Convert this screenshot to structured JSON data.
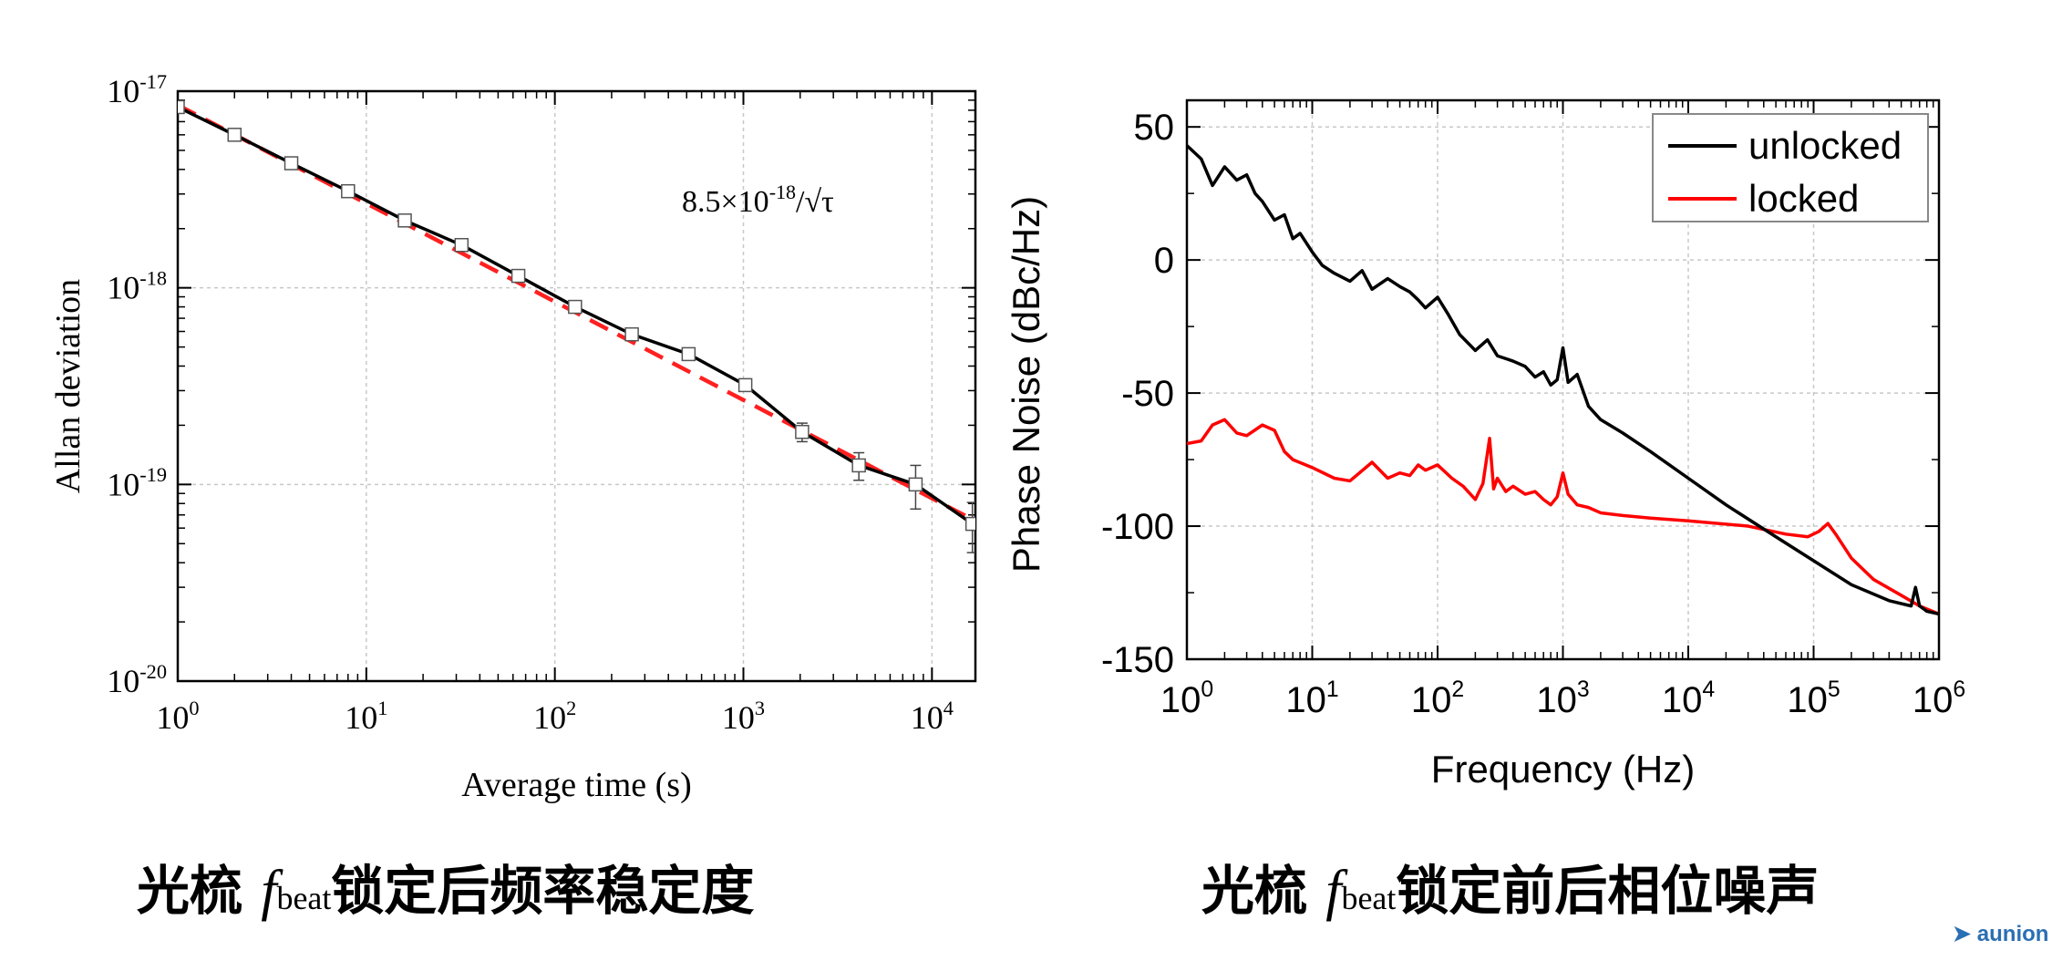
{
  "chart_data": [
    {
      "type": "line",
      "title": "",
      "xlabel": "Average time (s)",
      "ylabel": "Allan deviation",
      "xscale": "log",
      "yscale": "log",
      "xlim": [
        1,
        17000
      ],
      "ylim": [
        1e-20,
        1e-17
      ],
      "grid": true,
      "x_tick_labels": [
        {
          "base": "10",
          "exp": "0"
        },
        {
          "base": "10",
          "exp": "1"
        },
        {
          "base": "10",
          "exp": "2"
        },
        {
          "base": "10",
          "exp": "3"
        },
        {
          "base": "10",
          "exp": "4"
        }
      ],
      "y_tick_labels": [
        {
          "base": "10",
          "exp": "-17"
        },
        {
          "base": "10",
          "exp": "-18"
        },
        {
          "base": "10",
          "exp": "-19"
        },
        {
          "base": "10",
          "exp": "-20"
        }
      ],
      "annotation": {
        "prefix": "8.5×10",
        "exp": "-18",
        "suffix": "/√τ"
      },
      "series": [
        {
          "color": "#000000",
          "style": "solid-with-square-markers-and-error-bars",
          "x": [
            1,
            2,
            4,
            8,
            16,
            32,
            64,
            128,
            256,
            512,
            1024,
            2048,
            4096,
            8192,
            16384
          ],
          "y": [
            8.3e-18,
            6e-18,
            4.3e-18,
            3.1e-18,
            2.2e-18,
            1.65e-18,
            1.15e-18,
            8e-19,
            5.8e-19,
            4.6e-19,
            3.2e-19,
            1.85e-19,
            1.25e-19,
            1e-19,
            6.3e-20
          ],
          "err": [
            3e-19,
            2e-19,
            1.2e-19,
            1e-19,
            7e-20,
            6e-20,
            4e-20,
            3e-20,
            2e-20,
            2e-20,
            2e-20,
            2e-20,
            2e-20,
            2.5e-20,
            1.8e-20
          ]
        },
        {
          "color": "#ff2020",
          "style": "dashed",
          "x": [
            1,
            17000
          ],
          "y": [
            8.5e-18,
            6.52e-20
          ]
        }
      ]
    },
    {
      "type": "line",
      "title": "",
      "xlabel": "Frequency (Hz)",
      "ylabel": "Phase Noise (dBc/Hz)",
      "xscale": "log",
      "xlim": [
        1,
        1000000
      ],
      "ylim": [
        -150,
        60
      ],
      "grid": true,
      "legend": "top-right",
      "x_tick_labels": [
        {
          "base": "10",
          "exp": "0"
        },
        {
          "base": "10",
          "exp": "1"
        },
        {
          "base": "10",
          "exp": "2"
        },
        {
          "base": "10",
          "exp": "3"
        },
        {
          "base": "10",
          "exp": "4"
        },
        {
          "base": "10",
          "exp": "5"
        },
        {
          "base": "10",
          "exp": "6"
        }
      ],
      "y_ticks": [
        50,
        0,
        -50,
        -100,
        -150
      ],
      "y_tick_labels": [
        "50",
        "0",
        "-50",
        "-100",
        "-150"
      ],
      "series": [
        {
          "name": "unlocked",
          "color": "#000000",
          "x": [
            1,
            1.3,
            1.6,
            2,
            2.5,
            3,
            3.5,
            4,
            5,
            6,
            7,
            8,
            10,
            12,
            15,
            20,
            25,
            30,
            40,
            50,
            60,
            70,
            80,
            100,
            120,
            150,
            200,
            250,
            300,
            400,
            500,
            600,
            700,
            800,
            900,
            1000,
            1100,
            1300,
            1600,
            2000,
            3000,
            5000,
            10000,
            20000,
            50000,
            100000,
            200000,
            400000,
            600000,
            650000,
            700000,
            750000,
            800000,
            1000000
          ],
          "y": [
            43,
            38,
            28,
            35,
            30,
            32,
            25,
            22,
            15,
            17,
            8,
            10,
            3,
            -2,
            -5,
            -8,
            -4,
            -11,
            -7,
            -10,
            -12,
            -15,
            -18,
            -14,
            -20,
            -28,
            -34,
            -30,
            -36,
            -38,
            -40,
            -44,
            -42,
            -47,
            -45,
            -33,
            -46,
            -43,
            -55,
            -60,
            -65,
            -72,
            -82,
            -92,
            -104,
            -113,
            -122,
            -128,
            -130,
            -123,
            -130,
            -131,
            -132,
            -133
          ]
        },
        {
          "name": "locked",
          "color": "#ff0000",
          "x": [
            1,
            1.3,
            1.6,
            2,
            2.5,
            3,
            4,
            5,
            6,
            7,
            10,
            15,
            20,
            30,
            40,
            50,
            60,
            70,
            80,
            100,
            130,
            160,
            200,
            230,
            260,
            280,
            300,
            350,
            400,
            500,
            600,
            700,
            800,
            900,
            1000,
            1100,
            1300,
            1600,
            2000,
            3000,
            5000,
            10000,
            30000,
            60000,
            90000,
            110000,
            130000,
            150000,
            200000,
            300000,
            500000,
            700000,
            1000000
          ],
          "y": [
            -69,
            -68,
            -62,
            -60,
            -65,
            -66,
            -62,
            -64,
            -72,
            -75,
            -78,
            -82,
            -83,
            -76,
            -82,
            -80,
            -81,
            -77,
            -79,
            -77,
            -82,
            -85,
            -90,
            -84,
            -67,
            -86,
            -82,
            -87,
            -85,
            -88,
            -87,
            -90,
            -92,
            -89,
            -80,
            -88,
            -92,
            -93,
            -95,
            -96,
            -97,
            -98,
            -100,
            -103,
            -104,
            -102,
            -99,
            -103,
            -112,
            -120,
            -126,
            -130,
            -133
          ]
        }
      ]
    }
  ],
  "captions": {
    "left": {
      "prefix": "光梳 ",
      "f": "f",
      "sub": "beat",
      "suffix": "锁定后频率稳定度"
    },
    "right": {
      "prefix": "光梳 ",
      "f": "f",
      "sub": "beat",
      "suffix": "锁定前后相位噪声"
    }
  },
  "logo_text": "aunion"
}
